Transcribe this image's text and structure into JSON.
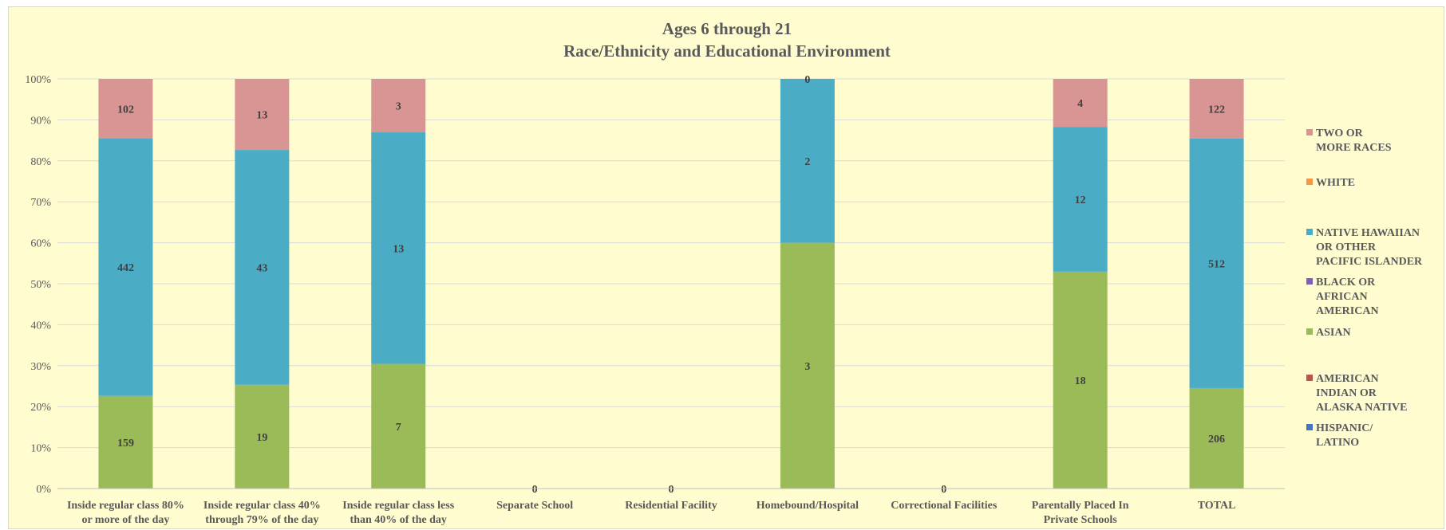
{
  "chart_data": {
    "type": "bar",
    "stacked": true,
    "normalized": true,
    "title": [
      "Ages 6 through 21",
      "Race/Ethnicity and Educational Environment"
    ],
    "xlabel": "",
    "ylabel": "",
    "ylim": [
      0,
      100
    ],
    "yticks": [
      "0%",
      "10%",
      "20%",
      "30%",
      "40%",
      "50%",
      "60%",
      "70%",
      "80%",
      "90%",
      "100%"
    ],
    "grid": true,
    "legend_position": "right",
    "categories": [
      [
        "Inside regular class 80%",
        "or more of the day"
      ],
      [
        "Inside regular class 40%",
        "through 79% of the day"
      ],
      [
        "Inside regular class less",
        "than 40% of the day"
      ],
      [
        "Separate School"
      ],
      [
        "Residential Facility"
      ],
      [
        "Homebound/Hospital"
      ],
      [
        "Correctional Facilities"
      ],
      [
        "Parentally Placed In",
        "Private Schools"
      ],
      [
        "TOTAL"
      ]
    ],
    "series": [
      {
        "name": [
          "HISPANIC/",
          "LATINO"
        ],
        "color": "#4472c4",
        "values": [
          0,
          0,
          0,
          0,
          0,
          0,
          0,
          0,
          0
        ]
      },
      {
        "name": [
          "AMERICAN",
          "INDIAN OR",
          "ALASKA NATIVE"
        ],
        "color": "#c0504d",
        "values": [
          0,
          0,
          0,
          0,
          0,
          0,
          0,
          0,
          0
        ]
      },
      {
        "name": [
          "ASIAN"
        ],
        "color": "#9bbb59",
        "values": [
          159,
          19,
          7,
          0,
          0,
          3,
          0,
          18,
          206
        ]
      },
      {
        "name": [
          "BLACK OR",
          "AFRICAN",
          "AMERICAN"
        ],
        "color": "#7f5fb5",
        "values": [
          0,
          0,
          0,
          0,
          0,
          0,
          0,
          0,
          0
        ]
      },
      {
        "name": [
          "NATIVE HAWAIIAN",
          "OR OTHER",
          "PACIFIC ISLANDER"
        ],
        "color": "#4bacc6",
        "values": [
          442,
          43,
          13,
          0,
          0,
          2,
          0,
          12,
          512
        ]
      },
      {
        "name": [
          "WHITE"
        ],
        "color": "#f79646",
        "values": [
          0,
          0,
          0,
          0,
          0,
          0,
          0,
          0,
          0
        ]
      },
      {
        "name": [
          "TWO OR",
          "MORE RACES"
        ],
        "color": "#d99594",
        "values": [
          102,
          13,
          3,
          0,
          0,
          0,
          0,
          4,
          122
        ]
      }
    ],
    "shown_labels": {
      "ASIAN": [
        159,
        19,
        7,
        null,
        null,
        3,
        null,
        18,
        206
      ],
      "NATIVE HAWAIIAN": [
        442,
        43,
        13,
        null,
        null,
        2,
        null,
        12,
        512
      ],
      "TWO OR MORE RACES": [
        102,
        13,
        3,
        null,
        null,
        0,
        null,
        4,
        122
      ],
      "empty_category_zero": [
        null,
        null,
        null,
        0,
        0,
        null,
        0,
        null,
        null
      ]
    }
  }
}
